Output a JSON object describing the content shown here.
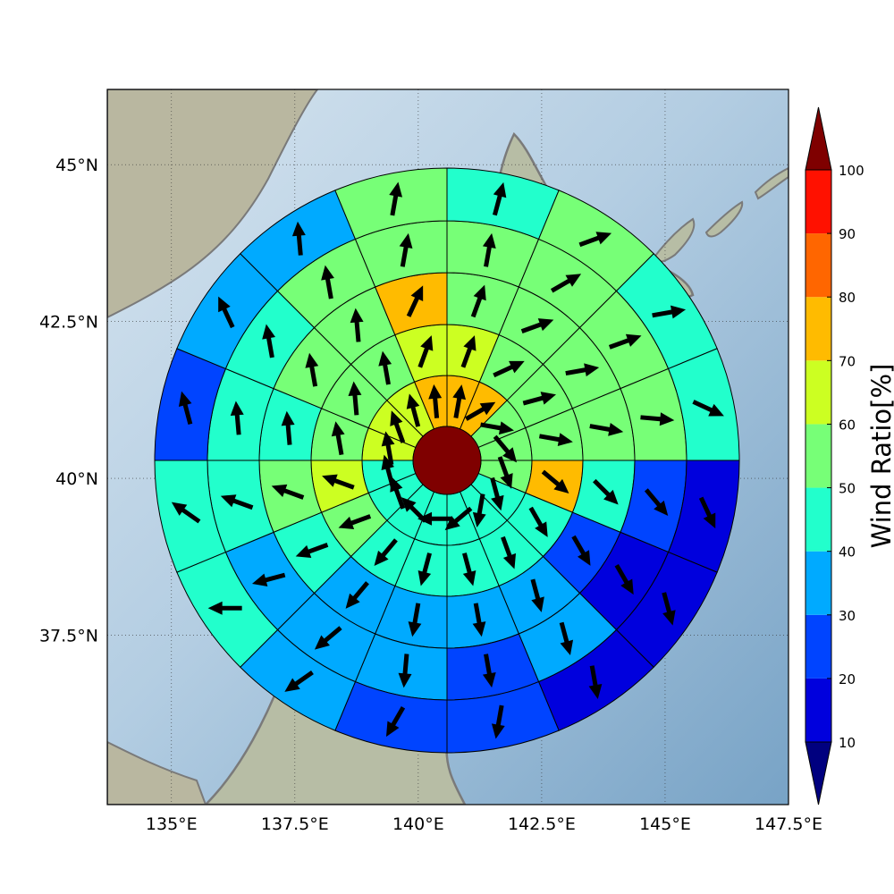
{
  "map": {
    "lon_range": [
      133.7,
      147.5
    ],
    "lat_range": [
      34.8,
      46.2
    ],
    "lon_ticks": [
      {
        "value": 135,
        "label": "135°E"
      },
      {
        "value": 137.5,
        "label": "137.5°E"
      },
      {
        "value": 140,
        "label": "140°E"
      },
      {
        "value": 142.5,
        "label": "142.5°E"
      },
      {
        "value": 145,
        "label": "145°E"
      },
      {
        "value": 147.5,
        "label": "147.5°E"
      }
    ],
    "lat_ticks": [
      {
        "value": 45,
        "label": "45°N"
      },
      {
        "value": 42.5,
        "label": "42.5°N"
      },
      {
        "value": 40,
        "label": "40°N"
      },
      {
        "value": 37.5,
        "label": "37.5°N"
      }
    ],
    "ocean_color": "#8fb3d3",
    "land_color": "#b8b79e",
    "coast_color": "#7a7a7a"
  },
  "colorbar": {
    "label": "Wind Ratio[%]",
    "levels": [
      10,
      20,
      30,
      40,
      50,
      60,
      70,
      80,
      90,
      100
    ],
    "tick_labels": [
      "10",
      "20",
      "30",
      "40",
      "50",
      "60",
      "70",
      "80",
      "90",
      "100"
    ],
    "colors": [
      "#0000dd",
      "#0044ff",
      "#00aaff",
      "#22ffcc",
      "#77ff77",
      "#ccff22",
      "#ffbb00",
      "#ff6600",
      "#ff1100"
    ],
    "under_color": "#00007f",
    "over_color": "#7f0000"
  },
  "wind_rose": {
    "center_color": "#7f0000",
    "sector_values_note": "rings inner to outer, 16 sectors clockwise from north",
    "rings": [
      [
        70,
        70,
        50,
        50,
        50,
        40,
        40,
        40,
        40,
        40,
        40,
        40,
        60,
        60,
        60,
        70
      ],
      [
        60,
        50,
        55,
        50,
        70,
        40,
        45,
        45,
        40,
        40,
        55,
        60,
        55,
        55,
        50,
        60
      ],
      [
        50,
        50,
        50,
        50,
        45,
        25,
        35,
        35,
        35,
        35,
        45,
        55,
        45,
        50,
        50,
        75
      ],
      [
        50,
        50,
        50,
        50,
        25,
        15,
        35,
        25,
        30,
        35,
        35,
        45,
        45,
        45,
        50,
        50
      ],
      [
        45,
        50,
        45,
        45,
        15,
        15,
        15,
        25,
        25,
        30,
        45,
        45,
        25,
        35,
        35,
        50
      ]
    ],
    "arrow_dirs_note": "arrow heading in degrees (0 = north, 90 = east), same layout as rings",
    "arrow_dirs": [
      [
        10,
        60,
        100,
        140,
        160,
        165,
        190,
        230,
        270,
        315,
        340,
        345,
        350,
        340,
        345,
        355
      ],
      [
        20,
        65,
        75,
        100,
        130,
        150,
        160,
        165,
        195,
        220,
        250,
        290,
        350,
        355,
        350,
        20
      ],
      [
        20,
        70,
        80,
        100,
        135,
        150,
        165,
        170,
        190,
        220,
        250,
        290,
        355,
        350,
        355,
        25
      ],
      [
        10,
        60,
        70,
        95,
        140,
        150,
        165,
        170,
        185,
        230,
        255,
        290,
        355,
        350,
        350,
        10
      ],
      [
        15,
        70,
        80,
        115,
        155,
        165,
        170,
        190,
        210,
        235,
        270,
        305,
        345,
        335,
        355,
        10
      ]
    ]
  }
}
